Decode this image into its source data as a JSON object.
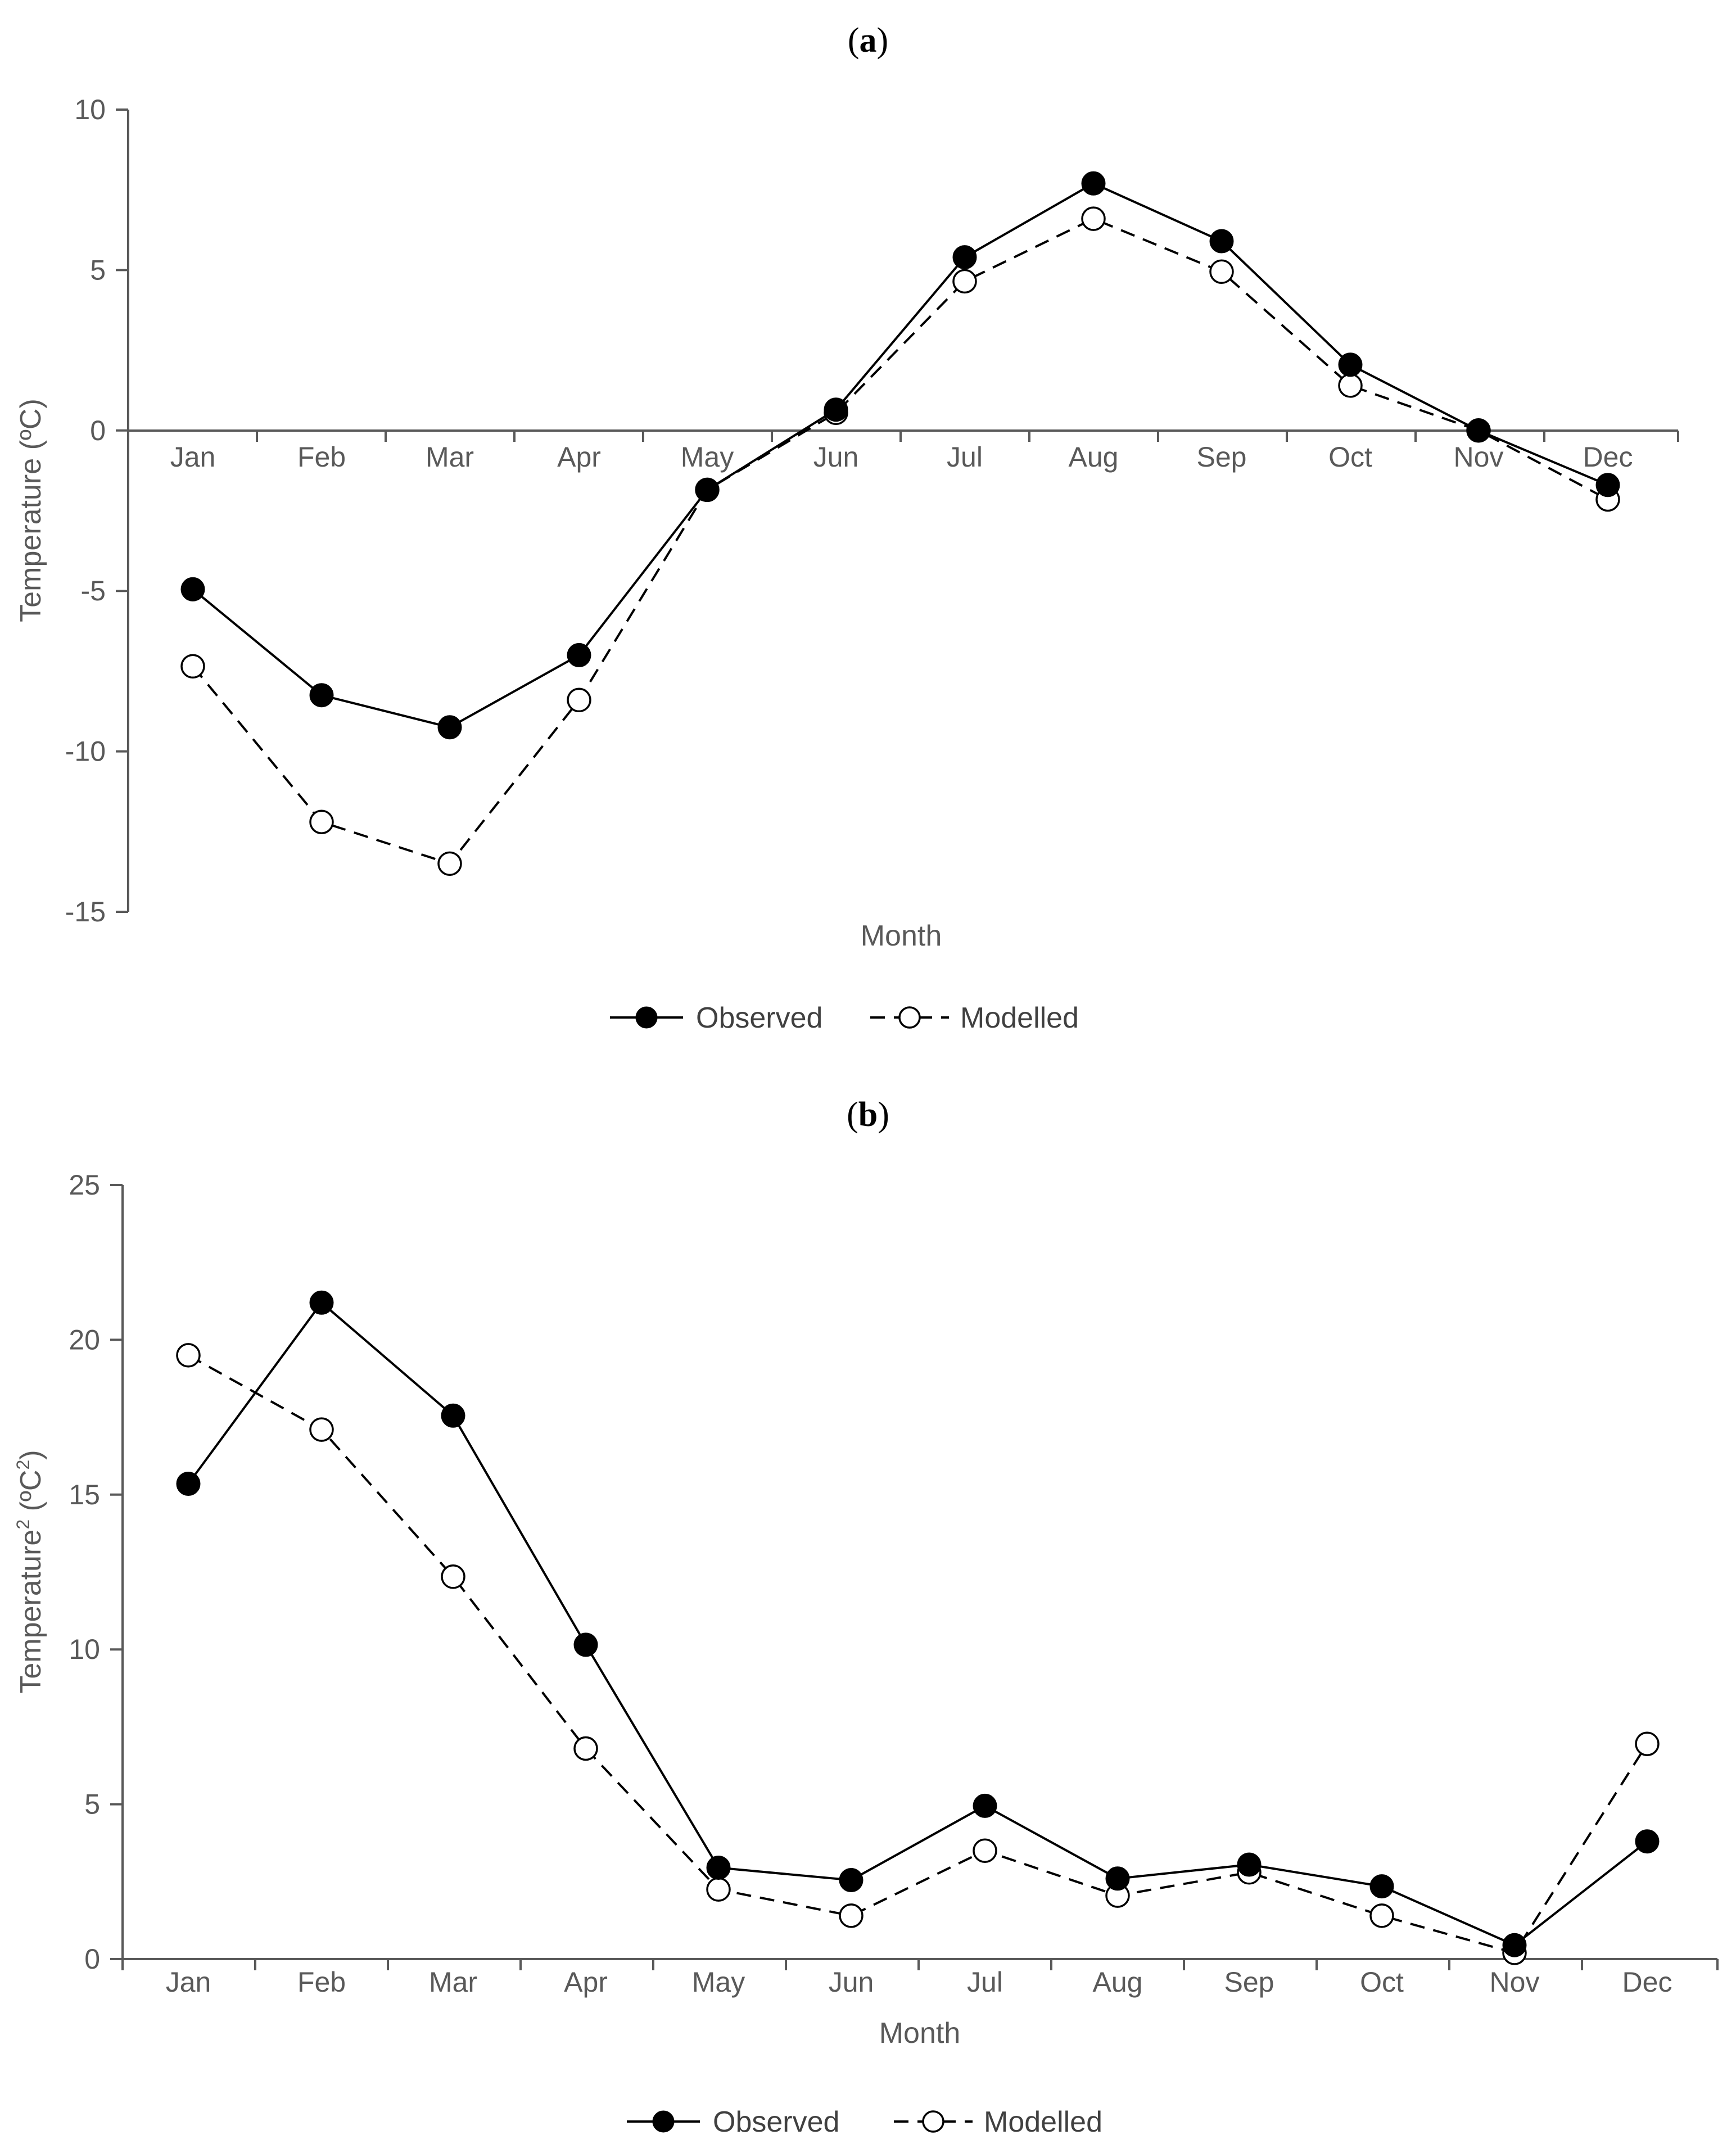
{
  "chart_data": [
    {
      "type": "line",
      "panel_label": "a",
      "panel_open": "(",
      "panel_close": ")",
      "categories": [
        "Jan",
        "Feb",
        "Mar",
        "Apr",
        "May",
        "Jun",
        "Jul",
        "Aug",
        "Sep",
        "Oct",
        "Nov",
        "Dec"
      ],
      "series": [
        {
          "name": "Observed",
          "marker": "filled",
          "line": "solid",
          "values": [
            -4.95,
            -8.25,
            -9.25,
            -7.0,
            -1.85,
            0.65,
            5.4,
            7.7,
            5.9,
            2.05,
            0.0,
            -1.7
          ]
        },
        {
          "name": "Modelled",
          "marker": "open",
          "line": "dashed",
          "values": [
            -7.35,
            -12.2,
            -13.5,
            -8.4,
            -1.85,
            0.55,
            4.65,
            6.6,
            4.95,
            1.4,
            0.0,
            -2.15
          ]
        }
      ],
      "title": "",
      "xlabel": "Month",
      "ylabel": "Temperature (ºC)",
      "ylim": [
        -15,
        10
      ],
      "yticks": [
        10,
        5,
        0,
        -5,
        -10,
        -15
      ],
      "ytick_labels": [
        "10",
        "5",
        "0",
        "-5",
        "-10",
        "-15"
      ],
      "grid": false,
      "legend_position": "bottom-center"
    },
    {
      "type": "line",
      "panel_label": "b",
      "panel_open": "(",
      "panel_close": ")",
      "categories": [
        "Jan",
        "Feb",
        "Mar",
        "Apr",
        "May",
        "Jun",
        "Jul",
        "Aug",
        "Sep",
        "Oct",
        "Nov",
        "Dec"
      ],
      "series": [
        {
          "name": "Observed",
          "marker": "filled",
          "line": "solid",
          "values": [
            15.35,
            21.2,
            17.55,
            10.15,
            2.95,
            2.55,
            4.95,
            2.6,
            3.05,
            2.35,
            0.45,
            3.8
          ]
        },
        {
          "name": "Modelled",
          "marker": "open",
          "line": "dashed",
          "values": [
            19.5,
            17.1,
            12.35,
            6.8,
            2.25,
            1.4,
            3.5,
            2.05,
            2.8,
            1.4,
            0.2,
            6.95
          ]
        }
      ],
      "title": "",
      "xlabel": "Month",
      "ylabel_main": "Temperature",
      "ylabel_sup1": "2",
      "ylabel_mid": " (ºC",
      "ylabel_sup2": "2",
      "ylabel_end": ")",
      "ylim": [
        0,
        25
      ],
      "yticks": [
        25,
        20,
        15,
        10,
        5,
        0
      ],
      "ytick_labels": [
        "25",
        "20",
        "15",
        "10",
        "5",
        "0"
      ],
      "grid": false,
      "legend_position": "bottom-center"
    }
  ],
  "colors": {
    "axis": "#595959",
    "line": "#000000",
    "marker_fill_open": "#ffffff",
    "text": "#595959"
  }
}
